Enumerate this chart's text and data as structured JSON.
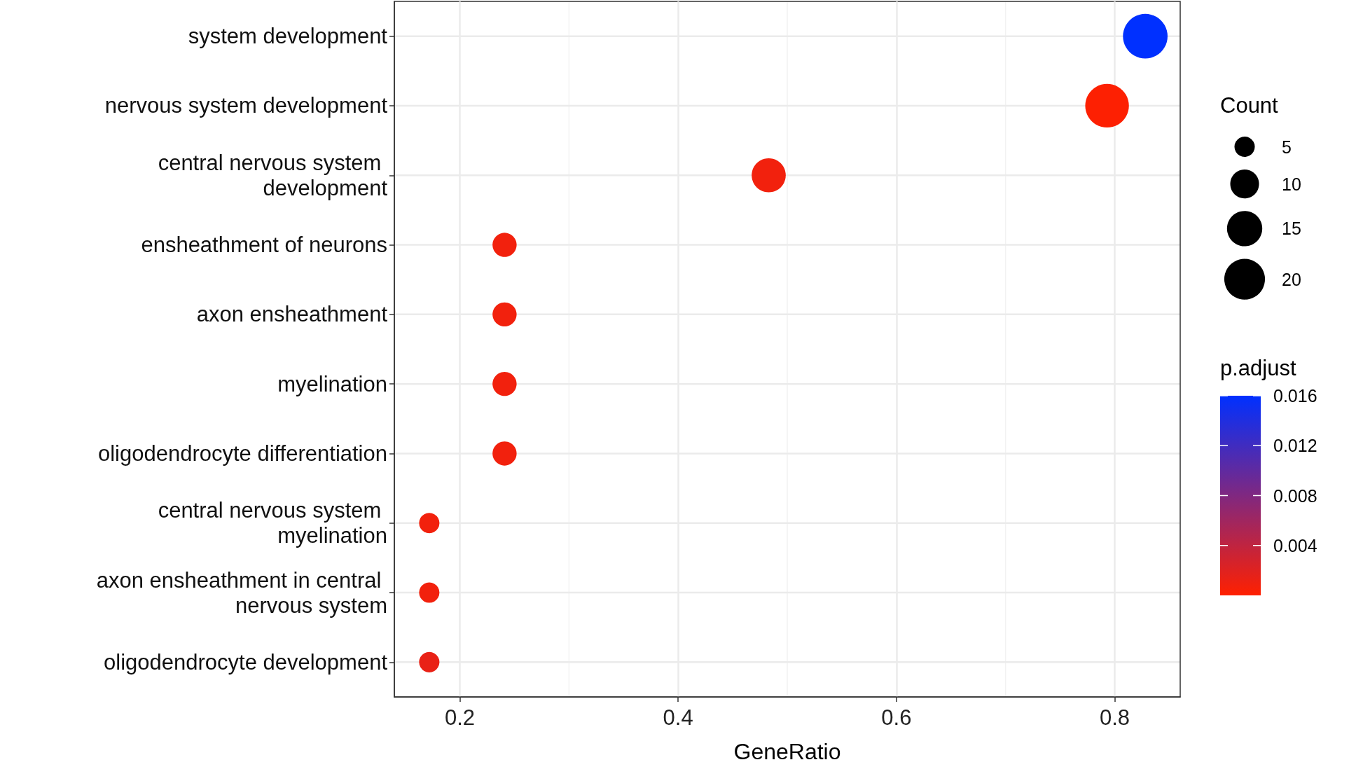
{
  "chart_data": {
    "type": "bubble",
    "orientation": "horizontal",
    "xlabel": "GeneRatio",
    "legend_title": "Count",
    "clabel": "p.adjust",
    "categories": [
      "system development",
      "nervous system development",
      "central nervous system development",
      "ensheathment of neurons",
      "axon ensheathment",
      "myelination",
      "oligodendrocyte differentiation",
      "central nervous system myelination",
      "axon ensheathment in central nervous system",
      "oligodendrocyte development"
    ],
    "values": [
      0.828,
      0.793,
      0.483,
      0.241,
      0.241,
      0.241,
      0.241,
      0.172,
      0.172,
      0.172
    ],
    "sizes": [
      24,
      23,
      14,
      7,
      7,
      7,
      7,
      5,
      5,
      5
    ],
    "size_legend": [
      5,
      10,
      15,
      20
    ],
    "cvalues": [
      0.016,
      0.0001,
      0.0008,
      0.0008,
      0.0008,
      0.0008,
      0.0008,
      0.0008,
      0.0008,
      0.0014
    ],
    "clim": [
      0,
      0.016
    ],
    "cticks": [
      0.004,
      0.008,
      0.012,
      0.016
    ],
    "xlim": [
      0.14,
      0.86
    ],
    "xticks": [
      0.2,
      0.4,
      0.6,
      0.8
    ],
    "grid": true
  }
}
